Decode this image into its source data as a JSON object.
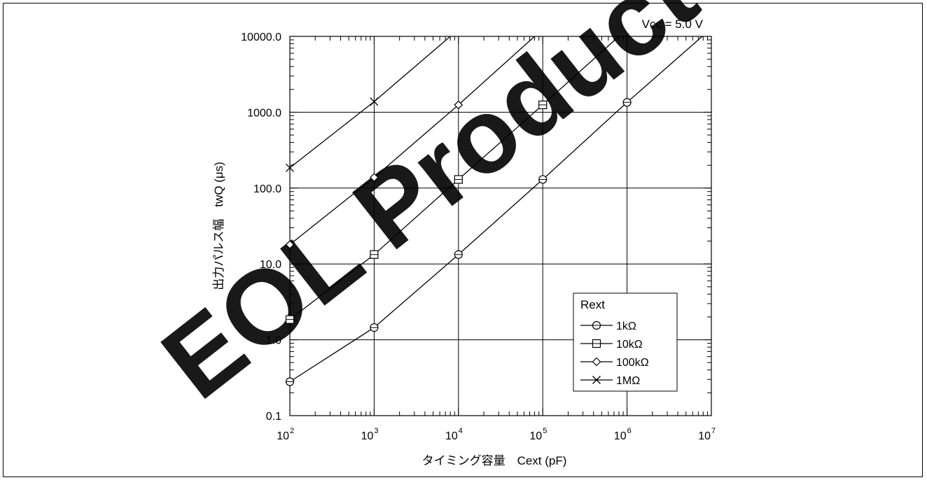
{
  "chart_data": {
    "type": "line",
    "title": "",
    "annotation": "Vcc = 5.0 V",
    "watermark": "EOL Product",
    "xlabel": "タイミング容量　Cext (pF)",
    "ylabel": "出力パルス幅　twQ (μs)",
    "x_scale": "log",
    "y_scale": "log",
    "xlim": [
      100,
      10000000
    ],
    "ylim": [
      0.1,
      10000
    ],
    "x_tick_base": "10",
    "x_tick_exponents": [
      "2",
      "3",
      "4",
      "5",
      "6",
      "7"
    ],
    "y_tick_labels": [
      "0.1",
      "1.0",
      "10.0",
      "100.0",
      "1000.0",
      "10000.0"
    ],
    "grid": true,
    "legend": {
      "title": "Rext",
      "position": "bottom-right"
    },
    "colors": {
      "line": "#000000",
      "watermark": "#ff0000"
    },
    "series": [
      {
        "name": "1kΩ",
        "marker": "circle",
        "points": [
          [
            100,
            0.28
          ],
          [
            1000,
            1.45
          ],
          [
            10000,
            13.3
          ],
          [
            100000,
            130
          ],
          [
            1000000,
            1350
          ],
          [
            7800000,
            10000
          ]
        ]
      },
      {
        "name": "10kΩ",
        "marker": "square",
        "points": [
          [
            100,
            1.85
          ],
          [
            1000,
            13.3
          ],
          [
            10000,
            130
          ],
          [
            100000,
            1250
          ],
          [
            800000,
            10000
          ]
        ]
      },
      {
        "name": "100kΩ",
        "marker": "diamond",
        "points": [
          [
            100,
            18
          ],
          [
            1000,
            138
          ],
          [
            10000,
            1250
          ],
          [
            80000,
            10000
          ]
        ]
      },
      {
        "name": "1MΩ",
        "marker": "x",
        "points": [
          [
            100,
            185
          ],
          [
            1000,
            1380
          ],
          [
            8000,
            10000
          ]
        ]
      }
    ]
  }
}
